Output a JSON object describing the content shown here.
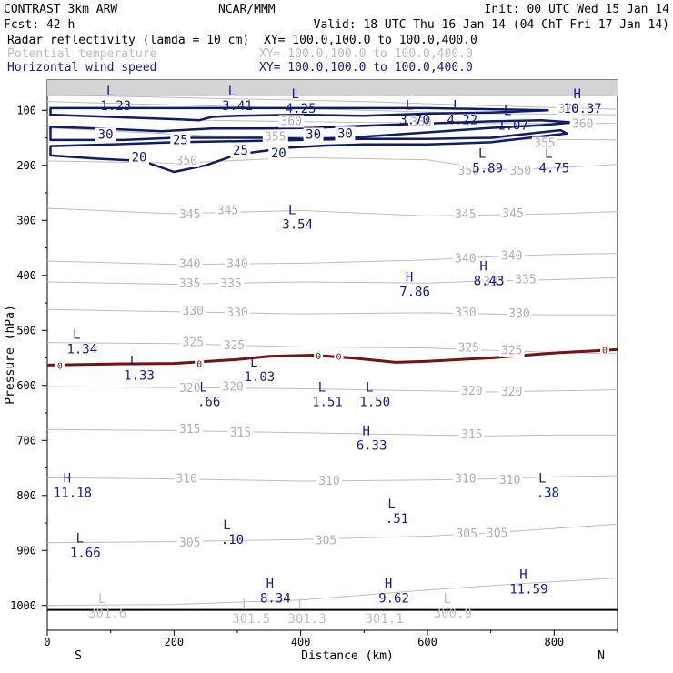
{
  "header": {
    "title": "CONTRAST  3km ARW",
    "org": "NCAR/MMM",
    "init": "Init: 00 UTC Wed 15 Jan 14",
    "fcst": "Fcst:   42 h",
    "valid": "Valid: 18 UTC Thu 16 Jan 14 (04 ChT Fri 17 Jan 14)",
    "field1_name": "Radar reflectivity (lamda = 10 cm)",
    "field1_xy": "XY= 100.0,100.0 to 100.0,400.0",
    "field2_name": "Potential temperature",
    "field2_xy": "XY= 100.0,100.0 to 100.0,400.0",
    "field3_name": "Horizontal wind speed",
    "field3_xy": "XY= 100.0,100.0 to 100.0,400.0"
  },
  "chart_data": {
    "type": "contour-cross-section",
    "xlabel": "Distance (km)",
    "ylabel": "Pressure (hPa)",
    "xlim": [
      0,
      900
    ],
    "ylim": [
      1045,
      45
    ],
    "x_ticks": [
      "0",
      "200",
      "400",
      "600",
      "800"
    ],
    "y_ticks": [
      "100",
      "200",
      "300",
      "400",
      "500",
      "600",
      "700",
      "800",
      "900",
      "1000"
    ],
    "endpoint_labels": {
      "left": "S",
      "right": "N"
    },
    "theta_contour_labels": [
      {
        "text": "370",
        "x": 823,
        "p": 98
      },
      {
        "text": "360",
        "x": 385,
        "p": 120
      },
      {
        "text": "360",
        "x": 590,
        "p": 122
      },
      {
        "text": "360",
        "x": 845,
        "p": 125
      },
      {
        "text": "355",
        "x": 360,
        "p": 148
      },
      {
        "text": "355",
        "x": 785,
        "p": 160
      },
      {
        "text": "350",
        "x": 220,
        "p": 192
      },
      {
        "text": "350",
        "x": 665,
        "p": 210
      },
      {
        "text": "350",
        "x": 747,
        "p": 210
      },
      {
        "text": "345",
        "x": 225,
        "p": 290
      },
      {
        "text": "345",
        "x": 285,
        "p": 282
      },
      {
        "text": "345",
        "x": 660,
        "p": 290
      },
      {
        "text": "345",
        "x": 735,
        "p": 288
      },
      {
        "text": "340",
        "x": 225,
        "p": 380
      },
      {
        "text": "340",
        "x": 300,
        "p": 380
      },
      {
        "text": "340",
        "x": 660,
        "p": 370
      },
      {
        "text": "340",
        "x": 733,
        "p": 365
      },
      {
        "text": "335",
        "x": 225,
        "p": 415
      },
      {
        "text": "335",
        "x": 290,
        "p": 415
      },
      {
        "text": "335",
        "x": 705,
        "p": 412
      },
      {
        "text": "335",
        "x": 755,
        "p": 408
      },
      {
        "text": "330",
        "x": 230,
        "p": 465
      },
      {
        "text": "330",
        "x": 300,
        "p": 468
      },
      {
        "text": "330",
        "x": 660,
        "p": 468
      },
      {
        "text": "330",
        "x": 745,
        "p": 470
      },
      {
        "text": "325",
        "x": 230,
        "p": 522
      },
      {
        "text": "325",
        "x": 295,
        "p": 528
      },
      {
        "text": "325",
        "x": 665,
        "p": 532
      },
      {
        "text": "325",
        "x": 733,
        "p": 537
      },
      {
        "text": "320",
        "x": 225,
        "p": 605
      },
      {
        "text": "320",
        "x": 293,
        "p": 603
      },
      {
        "text": "320",
        "x": 670,
        "p": 610
      },
      {
        "text": "320",
        "x": 733,
        "p": 612
      },
      {
        "text": "315",
        "x": 225,
        "p": 680
      },
      {
        "text": "315",
        "x": 305,
        "p": 686
      },
      {
        "text": "315",
        "x": 670,
        "p": 690
      },
      {
        "text": "310",
        "x": 220,
        "p": 770
      },
      {
        "text": "310",
        "x": 445,
        "p": 774
      },
      {
        "text": "310",
        "x": 660,
        "p": 770
      },
      {
        "text": "310",
        "x": 730,
        "p": 772
      },
      {
        "text": "305",
        "x": 225,
        "p": 886
      },
      {
        "text": "305",
        "x": 440,
        "p": 882
      },
      {
        "text": "305",
        "x": 662,
        "p": 870
      },
      {
        "text": "305",
        "x": 710,
        "p": 869
      }
    ],
    "theta_lines": [
      {
        "theta": 370,
        "x": [
          0,
          250,
          500,
          700,
          900
        ],
        "p": [
          72,
          78,
          84,
          92,
          98
        ]
      },
      {
        "theta": 365,
        "x": [
          0,
          250,
          500,
          700,
          900
        ],
        "p": [
          84,
          92,
          100,
          106,
          108
        ]
      },
      {
        "theta": 360,
        "x": [
          0,
          250,
          500,
          700,
          900
        ],
        "p": [
          108,
          118,
          122,
          124,
          124
        ]
      },
      {
        "theta": 355,
        "x": [
          0,
          250,
          500,
          700,
          900
        ],
        "p": [
          132,
          146,
          150,
          152,
          154
        ]
      },
      {
        "theta": 350,
        "x": [
          0,
          200,
          400,
          600,
          700,
          800,
          900
        ],
        "p": [
          192,
          196,
          186,
          190,
          208,
          205,
          198
        ]
      },
      {
        "theta": 345,
        "x": [
          0,
          200,
          400,
          600,
          700,
          800,
          900
        ],
        "p": [
          278,
          288,
          282,
          292,
          290,
          288,
          284
        ]
      },
      {
        "theta": 340,
        "x": [
          0,
          200,
          400,
          600,
          700,
          800,
          900
        ],
        "p": [
          374,
          380,
          378,
          372,
          366,
          362,
          360
        ]
      },
      {
        "theta": 335,
        "x": [
          0,
          200,
          400,
          600,
          700,
          800,
          900
        ],
        "p": [
          412,
          416,
          412,
          414,
          410,
          408,
          404
        ]
      },
      {
        "theta": 330,
        "x": [
          0,
          200,
          400,
          600,
          700,
          800,
          900
        ],
        "p": [
          462,
          466,
          470,
          468,
          470,
          472,
          472
        ]
      },
      {
        "theta": 325,
        "x": [
          0,
          200,
          400,
          600,
          700,
          800,
          900
        ],
        "p": [
          522,
          524,
          530,
          532,
          536,
          540,
          542
        ]
      },
      {
        "theta": 320,
        "x": [
          0,
          200,
          400,
          600,
          700,
          800,
          900
        ],
        "p": [
          602,
          604,
          606,
          610,
          612,
          610,
          608
        ]
      },
      {
        "theta": 315,
        "x": [
          0,
          200,
          400,
          600,
          700,
          800,
          900
        ],
        "p": [
          680,
          682,
          686,
          690,
          692,
          690,
          690
        ]
      },
      {
        "theta": 310,
        "x": [
          0,
          200,
          400,
          600,
          700,
          800,
          900
        ],
        "p": [
          768,
          770,
          774,
          772,
          770,
          766,
          764
        ]
      },
      {
        "theta": 305,
        "x": [
          0,
          200,
          400,
          600,
          700,
          800,
          900
        ],
        "p": [
          886,
          884,
          880,
          874,
          868,
          860,
          852
        ]
      },
      {
        "theta": 300,
        "x": [
          0,
          200,
          400,
          600,
          750,
          900
        ],
        "p": [
          1000,
          998,
          990,
          972,
          960,
          950
        ]
      }
    ],
    "wind_speed_contours": [
      {
        "value": 30,
        "x": [
          5,
          100,
          180,
          260,
          340,
          420,
          500,
          600,
          700,
          780,
          830,
          780,
          700,
          600,
          500,
          420,
          340,
          260,
          200,
          120,
          5
        ],
        "p": [
          130,
          134,
          138,
          133,
          133,
          132,
          128,
          124,
          120,
          118,
          122,
          127,
          132,
          140,
          148,
          152,
          150,
          150,
          150,
          154,
          154
        ]
      },
      {
        "value": 25,
        "x": [
          5,
          100,
          200,
          240,
          260,
          300,
          400,
          500,
          600,
          700,
          790,
          700,
          600,
          500,
          400,
          300,
          230,
          200,
          100,
          5
        ],
        "p": [
          108,
          112,
          116,
          118,
          112,
          110,
          108,
          110,
          106,
          104,
          100,
          98,
          96,
          96,
          96,
          96,
          96,
          96,
          96,
          96
        ]
      },
      {
        "value": 20,
        "x": [
          5,
          80,
          150,
          200,
          250,
          300,
          380,
          440,
          500,
          600,
          700,
          820,
          810,
          700,
          600,
          500,
          400,
          300,
          200,
          100,
          5
        ],
        "p": [
          182,
          188,
          192,
          212,
          200,
          180,
          168,
          164,
          162,
          162,
          158,
          142,
          136,
          150,
          152,
          152,
          154,
          156,
          158,
          162,
          165
        ]
      }
    ],
    "wind_speed_labels": [
      {
        "text": "30",
        "x": 92,
        "p": 145
      },
      {
        "text": "25",
        "x": 210,
        "p": 155
      },
      {
        "text": "25",
        "x": 305,
        "p": 174
      },
      {
        "text": "20",
        "x": 145,
        "p": 186
      },
      {
        "text": "20",
        "x": 365,
        "p": 179
      },
      {
        "text": "30",
        "x": 420,
        "p": 145
      },
      {
        "text": "30",
        "x": 470,
        "p": 143
      }
    ],
    "zero_line": {
      "value": 0,
      "x": [
        0,
        100,
        200,
        300,
        350,
        420,
        480,
        550,
        600,
        700,
        800,
        900
      ],
      "p": [
        563,
        561,
        560,
        553,
        547,
        545,
        550,
        558,
        556,
        550,
        541,
        535
      ]
    },
    "zero_labels": [
      {
        "text": "0",
        "x": 20,
        "p": 563
      },
      {
        "text": "0",
        "x": 240,
        "p": 560
      },
      {
        "text": "0",
        "x": 428,
        "p": 546
      },
      {
        "text": "0",
        "x": 460,
        "p": 547
      },
      {
        "text": "0",
        "x": 880,
        "p": 535
      }
    ],
    "extrema": [
      {
        "mark": "L",
        "value": "1.23",
        "x": 108,
        "p": 80
      },
      {
        "mark": "L",
        "value": "3.41",
        "x": 300,
        "p": 80
      },
      {
        "mark": "L",
        "value": "4.25",
        "x": 400,
        "p": 85
      },
      {
        "mark": "L",
        "value": "3.70",
        "x": 580,
        "p": 105
      },
      {
        "mark": "L",
        "value": "4.22",
        "x": 655,
        "p": 105
      },
      {
        "mark": "L",
        "value": "1.07",
        "x": 735,
        "p": 115
      },
      {
        "mark": "H",
        "value": "10.37",
        "x": 845,
        "p": 85
      },
      {
        "mark": "L",
        "value": "5.89",
        "x": 695,
        "p": 193
      },
      {
        "mark": "L",
        "value": "4.75",
        "x": 800,
        "p": 193
      },
      {
        "mark": "L",
        "value": "3.54",
        "x": 395,
        "p": 295
      },
      {
        "mark": "H",
        "value": "8.43",
        "x": 697,
        "p": 398
      },
      {
        "mark": "H",
        "value": "7.86",
        "x": 580,
        "p": 418
      },
      {
        "mark": "L",
        "value": "1.34",
        "x": 55,
        "p": 522
      },
      {
        "mark": "L",
        "value": "1.33",
        "x": 145,
        "p": 570
      },
      {
        "mark": "L",
        "value": "1.03",
        "x": 335,
        "p": 572
      },
      {
        "mark": "L",
        "value": ".66",
        "x": 255,
        "p": 618
      },
      {
        "mark": "L",
        "value": "1.51",
        "x": 442,
        "p": 618
      },
      {
        "mark": "L",
        "value": "1.50",
        "x": 517,
        "p": 618
      },
      {
        "mark": "H",
        "value": "6.33",
        "x": 512,
        "p": 697
      },
      {
        "mark": "H",
        "value": "11.18",
        "x": 40,
        "p": 783
      },
      {
        "mark": "L",
        "value": ".38",
        "x": 790,
        "p": 783
      },
      {
        "mark": "L",
        "value": ".51",
        "x": 552,
        "p": 830
      },
      {
        "mark": "L",
        "value": ".10",
        "x": 292,
        "p": 868
      },
      {
        "mark": "L",
        "value": "1.66",
        "x": 60,
        "p": 892
      },
      {
        "mark": "H",
        "value": "11.59",
        "x": 760,
        "p": 958
      },
      {
        "mark": "H",
        "value": "8.34",
        "x": 360,
        "p": 975
      },
      {
        "mark": "H",
        "value": "9.62",
        "x": 547,
        "p": 975
      }
    ],
    "faint_extrema": [
      {
        "mark": "L",
        "value": "301.6",
        "x": 95,
        "p": 1002
      },
      {
        "mark": "L",
        "value": "301.5",
        "x": 322,
        "p": 1012
      },
      {
        "mark": "L",
        "value": "301.3",
        "x": 410,
        "p": 1012
      },
      {
        "mark": "L",
        "value": "301.1",
        "x": 532,
        "p": 1012
      },
      {
        "mark": "L",
        "value": "300.9",
        "x": 640,
        "p": 1002
      }
    ],
    "surface_p": 1008
  }
}
